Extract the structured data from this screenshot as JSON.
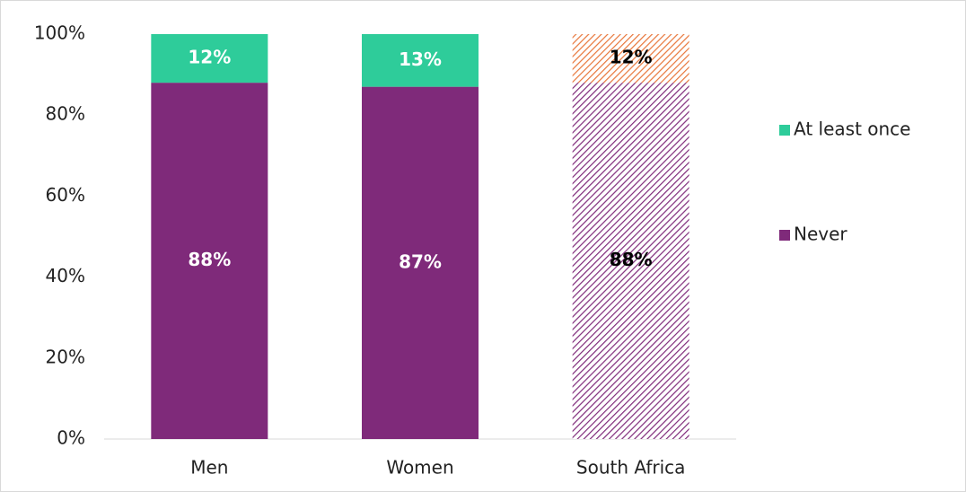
{
  "chart_data": {
    "type": "bar",
    "stacked": true,
    "categories": [
      "Men",
      "Women",
      "South Africa"
    ],
    "series": [
      {
        "name": "Never",
        "color": "#7f2a7a",
        "hatch_color": "#7f2a7a",
        "values": [
          88,
          87,
          88
        ],
        "value_labels": [
          "88%",
          "87%",
          "88%"
        ]
      },
      {
        "name": "At least once",
        "color": "#2ecc9a",
        "hatch_color": "#e8763a",
        "values": [
          12,
          13,
          12
        ],
        "value_labels": [
          "12%",
          "13%",
          "12%"
        ]
      }
    ],
    "hatched": [
      false,
      false,
      true
    ],
    "ylim": [
      0,
      100
    ],
    "yticks": [
      {
        "value": 0,
        "label": "0%"
      },
      {
        "value": 20,
        "label": "20%"
      },
      {
        "value": 40,
        "label": "40%"
      },
      {
        "value": 60,
        "label": "60%"
      },
      {
        "value": 80,
        "label": "80%"
      },
      {
        "value": 100,
        "label": "100%"
      }
    ],
    "grid": false,
    "legend": "right"
  }
}
